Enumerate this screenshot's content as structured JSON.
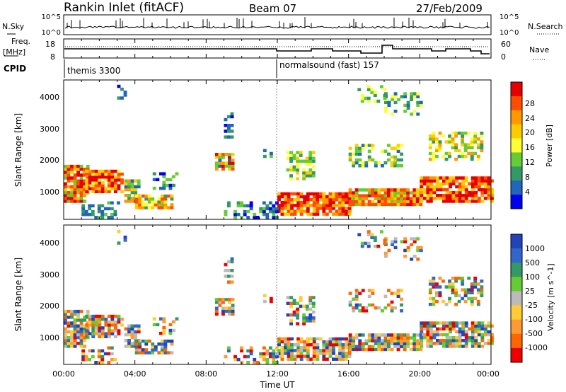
{
  "header": {
    "station": "Rankin Inlet (fitACF)",
    "beam": "Beam 07",
    "date": "27/Feb/2009"
  },
  "top_panel": {
    "left_label": "N.Sky",
    "left_ticks": [
      "10^5",
      "10^0"
    ],
    "right_label": "N.Search",
    "right_ticks": [
      "10^5",
      "10^0"
    ]
  },
  "freq_panel": {
    "left_label_line1": "Freq.",
    "left_label_line2": "[MHz]",
    "left_ticks": [
      "18",
      "8"
    ],
    "right_label": "Nave",
    "right_ticks": [
      "60",
      "0"
    ]
  },
  "cpid": {
    "label": "CPID",
    "segments": [
      "themis 3300",
      "normalsound (fast) 157"
    ]
  },
  "chart_data": [
    {
      "type": "heatmap",
      "title": "Power",
      "ylabel": "Slant Range [km]",
      "xlabel": "Time UT",
      "x_ticks": [
        "00:00",
        "04:00",
        "08:00",
        "12:00",
        "16:00",
        "20:00",
        "00:00"
      ],
      "y_ticks": [
        "1000",
        "2000",
        "3000",
        "4000"
      ],
      "ylim": [
        180,
        4500
      ],
      "colorbar_label": "Power [dB]",
      "colorbar_ticks": [
        "28",
        "24",
        "20",
        "16",
        "12",
        "8",
        "4"
      ],
      "colorbar_colors": [
        "#e60000",
        "#ff4d00",
        "#ff9900",
        "#ffcc00",
        "#ffff33",
        "#66cc33",
        "#339966",
        "#2266bb",
        "#0000ee"
      ]
    },
    {
      "type": "heatmap",
      "title": "Velocity",
      "ylabel": "Slant Range [km]",
      "xlabel": "Time UT",
      "x_ticks": [
        "00:00",
        "04:00",
        "08:00",
        "12:00",
        "16:00",
        "20:00",
        "00:00"
      ],
      "y_ticks": [
        "1000",
        "2000",
        "3000",
        "4000"
      ],
      "ylim": [
        180,
        4500
      ],
      "colorbar_label": "Velocity [m s^-1]",
      "colorbar_ticks": [
        "1000",
        "500",
        "100",
        "25",
        "-25",
        "-100",
        "-500",
        "-1000"
      ],
      "colorbar_colors": [
        "#2244bb",
        "#3366cc",
        "#339966",
        "#66cc33",
        "#bbbbbb",
        "#ffcc33",
        "#ff9933",
        "#ff6600",
        "#ee0000"
      ]
    }
  ],
  "x_axis": {
    "title": "Time UT",
    "ticks": [
      "00:00",
      "04:00",
      "08:00",
      "12:00",
      "16:00",
      "20:00",
      "00:00"
    ]
  }
}
